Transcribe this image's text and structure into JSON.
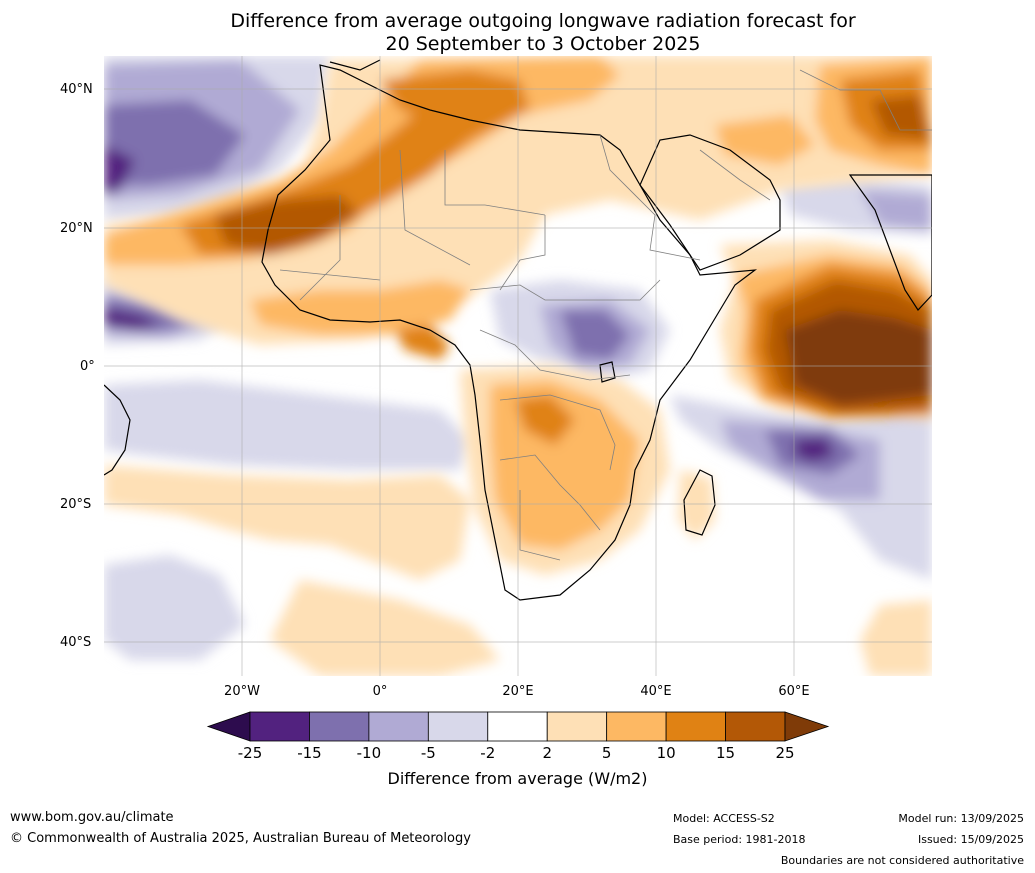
{
  "title_line1": "Difference from average outgoing longwave radiation forecast for",
  "title_line2": "20 September to 3 October 2025",
  "lat_labels": [
    "40°N",
    "20°N",
    "0°",
    "20°S",
    "40°S"
  ],
  "lon_labels": [
    "20°W",
    "0°",
    "20°E",
    "40°E",
    "60°E"
  ],
  "colorbar": {
    "ticks": [
      "-25",
      "-15",
      "-10",
      "-5",
      "-2",
      "2",
      "5",
      "10",
      "15",
      "25"
    ],
    "colors": [
      "#2d0c4e",
      "#52227f",
      "#7e70ae",
      "#b0aad4",
      "#d8d8ea",
      "#ffffff",
      "#fee0b6",
      "#fdb863",
      "#e08214",
      "#b35806",
      "#7f3b08"
    ],
    "label": "Difference from average (W/m2)"
  },
  "footer": {
    "url": "www.bom.gov.au/climate",
    "copyright": "© Commonwealth of Australia 2025, Australian Bureau of Meteorology",
    "model": "Model: ACCESS-S2",
    "base_period": "Base period: 1981-2018",
    "model_run": "Model run: 13/09/2025",
    "issued": "Issued: 15/09/2025",
    "disclaimer": "Boundaries are not considered authoritative"
  }
}
